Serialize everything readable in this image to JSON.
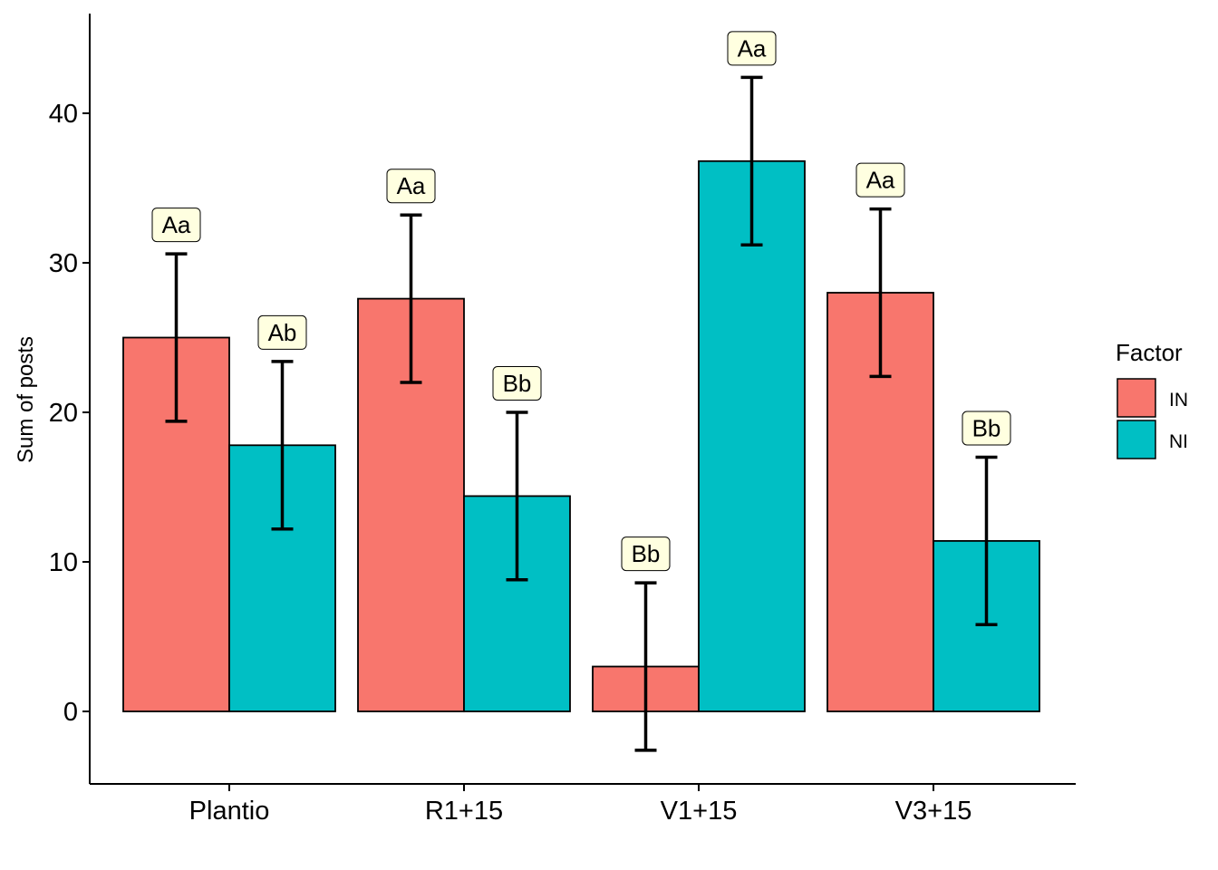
{
  "chart_data": {
    "type": "bar",
    "categories": [
      "Plantio",
      "R1+15",
      "V1+15",
      "V3+15"
    ],
    "series": [
      {
        "name": "IN",
        "values": [
          25.0,
          27.6,
          3.0,
          28.0
        ],
        "error_low": [
          19.4,
          22.0,
          -2.6,
          22.4
        ],
        "error_high": [
          30.6,
          33.2,
          8.6,
          33.6
        ],
        "letters": [
          "Aa",
          "Aa",
          "Bb",
          "Aa"
        ]
      },
      {
        "name": "NI",
        "values": [
          17.8,
          14.4,
          36.8,
          11.4
        ],
        "error_low": [
          12.2,
          8.8,
          31.2,
          5.8
        ],
        "error_high": [
          23.4,
          20.0,
          42.4,
          17.0
        ],
        "letters": [
          "Ab",
          "Bb",
          "Aa",
          "Bb"
        ]
      }
    ],
    "xlabel": "",
    "ylabel": "Sum of posts",
    "ylim": [
      -5,
      47
    ],
    "yticks": [
      0,
      10,
      20,
      30,
      40
    ],
    "legend": {
      "title": "Factor",
      "position": "right"
    },
    "grid": false
  },
  "colors": {
    "IN": "#F8766D",
    "NI": "#00BFC4",
    "label_fill": "#FFFFE0",
    "axis": "#000000"
  }
}
